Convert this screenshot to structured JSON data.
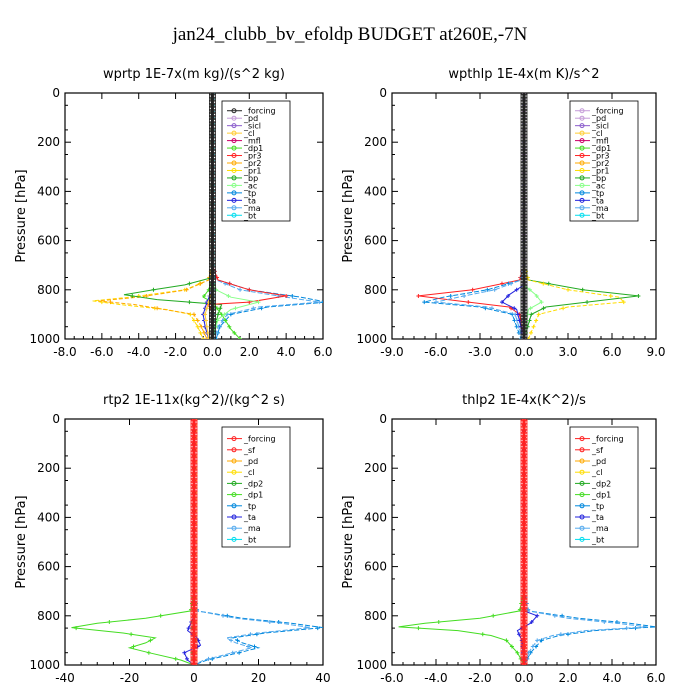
{
  "figure": {
    "title": "jan24_clubb_bv_efoldp  BUDGET at260E,-7N"
  },
  "colors": {
    "forcing": "#222222",
    "pd": "#c49bd8",
    "sicl": "#8a5ccc",
    "cl": "#ffcc33",
    "mfl": "#cc0066",
    "dp1": "#44dd22",
    "dp2": "#22aa22",
    "pr3": "#ff2222",
    "pr2": "#ffaa00",
    "pr1": "#ffdd00",
    "bp": "#22aa22",
    "ac": "#88ff88",
    "tp": "#0088dd",
    "ta": "#2222dd",
    "ma": "#55aaee",
    "bt": "#00ddee",
    "sf": "#ff2222",
    "forcing_red": "#ff2222"
  },
  "chart_data": [
    {
      "type": "line",
      "title": "wprtp   1E-7x(m kg)/(s^2 kg)",
      "ylabel": "Pressure [hPa]",
      "xlim": [
        -8,
        6
      ],
      "ylim": [
        1000,
        0
      ],
      "xticks": [
        "-8.0",
        "-6.0",
        "-4.0",
        "-2.0",
        "0.0",
        "2.0",
        "4.0",
        "6.0"
      ],
      "xtick_values": [
        -8,
        -6,
        -4,
        -2,
        0,
        2,
        4,
        6
      ],
      "yticks": [
        "0",
        "200",
        "400",
        "600",
        "800",
        "1000"
      ],
      "ytick_values": [
        0,
        200,
        400,
        600,
        800,
        1000
      ],
      "legend": [
        "_forcing",
        "_pd",
        "_sicl",
        "_cl",
        "_mfl",
        "_dp1",
        "_pr3",
        "_pr2",
        "_pr1",
        "_bp",
        "_ac",
        "_tp",
        "_ta",
        "_ma",
        "_bt"
      ],
      "legend_colors": [
        "forcing",
        "pd",
        "sicl",
        "cl",
        "mfl",
        "dp1",
        "pr3",
        "pr2",
        "pr1",
        "bp",
        "ac",
        "tp",
        "ta",
        "ma",
        "bt"
      ],
      "series": [
        {
          "name": "_tp",
          "color": "tp",
          "p": [
            0,
            700,
            760,
            800,
            830,
            850,
            870,
            900,
            950,
            1000
          ],
          "v": [
            0,
            0,
            0.3,
            2.0,
            4.8,
            6.2,
            3.0,
            1.0,
            0.4,
            0.2
          ]
        },
        {
          "name": "_ma",
          "color": "ma",
          "p": [
            0,
            700,
            760,
            800,
            830,
            850,
            870,
            900,
            950,
            1000
          ],
          "v": [
            0,
            0,
            0.2,
            1.5,
            4.0,
            5.8,
            2.5,
            0.8,
            0.3,
            0.1
          ]
        },
        {
          "name": "_pr1",
          "color": "pr1",
          "p": [
            0,
            700,
            760,
            800,
            830,
            845,
            860,
            880,
            900,
            950,
            1000
          ],
          "v": [
            0,
            0,
            -0.2,
            -1.5,
            -4.5,
            -6.5,
            -5.0,
            -2.5,
            -1.2,
            -0.8,
            -0.5
          ]
        },
        {
          "name": "_pr2",
          "color": "pr2",
          "p": [
            0,
            700,
            760,
            800,
            830,
            845,
            860,
            900,
            950,
            1000
          ],
          "v": [
            0,
            0,
            -0.2,
            -1.4,
            -4.0,
            -6.2,
            -4.2,
            -1.0,
            -0.6,
            -0.3
          ]
        },
        {
          "name": "_bp",
          "color": "bp",
          "p": [
            0,
            700,
            750,
            780,
            800,
            820,
            840,
            860,
            900,
            1000
          ],
          "v": [
            0,
            0,
            0,
            -1.5,
            -3.2,
            -4.8,
            -3.0,
            0.5,
            0.3,
            0
          ]
        },
        {
          "name": "_dp1",
          "color": "dp1",
          "p": [
            0,
            700,
            760,
            800,
            830,
            850,
            900,
            960,
            1000
          ],
          "v": [
            0,
            0,
            0,
            -0.2,
            -0.5,
            0,
            0.5,
            1.0,
            1.5
          ]
        },
        {
          "name": "_pr3",
          "color": "pr3",
          "p": [
            0,
            700,
            760,
            800,
            825,
            850,
            860,
            880,
            1000
          ],
          "v": [
            0,
            0,
            0.3,
            2.0,
            4.0,
            2.0,
            -0.3,
            0,
            0
          ]
        },
        {
          "name": "_ac",
          "color": "ac",
          "p": [
            0,
            700,
            760,
            800,
            830,
            850,
            880,
            920,
            1000
          ],
          "v": [
            0,
            0,
            0,
            0.2,
            1.0,
            2.5,
            1.0,
            0.3,
            0
          ]
        },
        {
          "name": "_ta",
          "color": "ta",
          "p": [
            0,
            800,
            850,
            900,
            950,
            1000
          ],
          "v": [
            0,
            0,
            -0.3,
            -0.5,
            -0.4,
            -0.2
          ]
        },
        {
          "name": "_cl",
          "color": "cl",
          "p": [
            0,
            800,
            850,
            900,
            950,
            1000
          ],
          "v": [
            0,
            0,
            -0.2,
            -0.4,
            -0.3,
            -0.2
          ]
        },
        {
          "name": "_bt",
          "color": "bt",
          "p": [
            0,
            1000
          ],
          "v": [
            0.02,
            0.02
          ]
        },
        {
          "name": "_forcing",
          "color": "forcing",
          "p": [
            0,
            1000
          ],
          "v": [
            0,
            0
          ]
        }
      ]
    },
    {
      "type": "line",
      "title": "wpthlp   1E-4x(m K)/s^2",
      "ylabel": "Pressure [hPa]",
      "xlim": [
        -9,
        9
      ],
      "ylim": [
        1000,
        0
      ],
      "xticks": [
        "-9.0",
        "-6.0",
        "-3.0",
        "0.0",
        "3.0",
        "6.0",
        "9.0"
      ],
      "xtick_values": [
        -9,
        -6,
        -3,
        0,
        3,
        6,
        9
      ],
      "yticks": [
        "0",
        "200",
        "400",
        "600",
        "800",
        "1000"
      ],
      "ytick_values": [
        0,
        200,
        400,
        600,
        800,
        1000
      ],
      "legend": [
        "_forcing",
        "_pd",
        "_sicl",
        "_cl",
        "_mfl",
        "_dp1",
        "_pr3",
        "_pr2",
        "_pr1",
        "_bp",
        "_ac",
        "_tp",
        "_ta",
        "_ma",
        "_bt"
      ],
      "legend_colors": [
        "pd",
        "pd",
        "sicl",
        "cl",
        "mfl",
        "dp1",
        "pr3",
        "pr2",
        "pr1",
        "bp",
        "ac",
        "tp",
        "ta",
        "ma",
        "bt"
      ],
      "series": [
        {
          "name": "_bp",
          "color": "bp",
          "p": [
            0,
            700,
            760,
            800,
            825,
            845,
            870,
            900,
            1000
          ],
          "v": [
            0,
            0,
            0.3,
            4.0,
            7.8,
            5.0,
            1.5,
            0.5,
            0
          ]
        },
        {
          "name": "_pr1",
          "color": "pr1",
          "p": [
            0,
            700,
            760,
            800,
            830,
            850,
            870,
            900,
            1000
          ],
          "v": [
            0,
            0,
            0.3,
            3.0,
            6.5,
            6.8,
            3.0,
            1.0,
            0.3
          ]
        },
        {
          "name": "_pr3",
          "color": "pr3",
          "p": [
            0,
            700,
            760,
            800,
            825,
            845,
            870,
            900,
            1000
          ],
          "v": [
            0,
            0,
            -0.3,
            -3.5,
            -7.2,
            -4.5,
            -1.0,
            -0.3,
            0
          ]
        },
        {
          "name": "_tp",
          "color": "tp",
          "p": [
            0,
            700,
            760,
            800,
            830,
            850,
            870,
            900,
            1000
          ],
          "v": [
            0,
            0,
            -0.2,
            -2.5,
            -5.5,
            -6.8,
            -3.0,
            -0.8,
            -0.2
          ]
        },
        {
          "name": "_ma",
          "color": "ma",
          "p": [
            0,
            700,
            760,
            800,
            830,
            850,
            870,
            900,
            1000
          ],
          "v": [
            0,
            0,
            -0.2,
            -2.0,
            -4.5,
            -6.0,
            -2.5,
            -0.6,
            -0.1
          ]
        },
        {
          "name": "_ta",
          "color": "ta",
          "p": [
            0,
            780,
            820,
            850,
            880,
            1000
          ],
          "v": [
            0,
            0,
            -1.0,
            -1.5,
            -0.5,
            0
          ]
        },
        {
          "name": "_ac",
          "color": "ac",
          "p": [
            0,
            780,
            820,
            850,
            880,
            1000
          ],
          "v": [
            0,
            0,
            0.8,
            1.2,
            0.3,
            0
          ]
        },
        {
          "name": "_pd",
          "color": "pd",
          "p": [
            0,
            1000
          ],
          "v": [
            0,
            0
          ]
        }
      ]
    },
    {
      "type": "line",
      "title": "rtp2   1E-11x(kg^2)/(kg^2 s)",
      "ylabel": "Pressure [hPa]",
      "xlim": [
        -40,
        40
      ],
      "ylim": [
        1000,
        0
      ],
      "xticks": [
        "-40",
        "-20",
        "0",
        "20",
        "40"
      ],
      "xtick_values": [
        -40,
        -20,
        0,
        20,
        40
      ],
      "yticks": [
        "0",
        "200",
        "400",
        "600",
        "800",
        "1000"
      ],
      "ytick_values": [
        0,
        200,
        400,
        600,
        800,
        1000
      ],
      "legend": [
        "_forcing",
        "_sf",
        "_pd",
        "_cl",
        "_dp2",
        "_dp1",
        "_tp",
        "_ta",
        "_ma",
        "_bt"
      ],
      "legend_colors": [
        "forcing_red",
        "sf",
        "pr2",
        "pr1",
        "dp2",
        "dp1",
        "tp",
        "ta",
        "ma",
        "bt"
      ],
      "series": [
        {
          "name": "_dp1",
          "color": "dp1",
          "p": [
            0,
            700,
            780,
            810,
            830,
            848,
            870,
            890,
            910,
            930,
            950,
            980,
            1000
          ],
          "v": [
            0,
            0,
            -1,
            -15,
            -30,
            -38,
            -22,
            -12,
            -15,
            -20,
            -14,
            -4,
            0
          ]
        },
        {
          "name": "_tp",
          "color": "tp",
          "p": [
            0,
            700,
            780,
            810,
            830,
            848,
            870,
            890,
            910,
            930,
            950,
            980,
            1000
          ],
          "v": [
            0,
            0,
            1,
            15,
            30,
            40,
            22,
            12,
            15,
            20,
            14,
            4,
            0
          ]
        },
        {
          "name": "_ma",
          "color": "ma",
          "p": [
            0,
            700,
            780,
            810,
            830,
            848,
            870,
            890,
            910,
            930,
            950,
            980,
            1000
          ],
          "v": [
            0,
            0,
            1,
            13,
            27,
            36,
            20,
            10,
            13,
            18,
            12,
            3,
            0
          ]
        },
        {
          "name": "_ta",
          "color": "ta",
          "p": [
            0,
            800,
            830,
            860,
            890,
            920,
            950,
            980,
            1000
          ],
          "v": [
            0,
            0,
            -1,
            -2,
            1,
            2,
            -3,
            -2,
            0
          ]
        },
        {
          "name": "_dp2",
          "color": "dp2",
          "p": [
            0,
            800,
            850,
            900,
            950,
            1000
          ],
          "v": [
            0,
            0,
            -0.5,
            0.5,
            -0.5,
            0
          ]
        },
        {
          "name": "_pd",
          "color": "pr2",
          "p": [
            0,
            1000
          ],
          "v": [
            0.3,
            0.3
          ]
        },
        {
          "name": "_forcing",
          "color": "forcing_red",
          "p": [
            0,
            1000
          ],
          "v": [
            0,
            0
          ]
        }
      ]
    },
    {
      "type": "line",
      "title": "thlp2   1E-4x(K^2)/s",
      "ylabel": "Pressure [hPa]",
      "xlim": [
        -6,
        6
      ],
      "ylim": [
        1000,
        0
      ],
      "xticks": [
        "-6.0",
        "-4.0",
        "-2.0",
        "0.0",
        "2.0",
        "4.0",
        "6.0"
      ],
      "xtick_values": [
        -6,
        -4,
        -2,
        0,
        2,
        4,
        6
      ],
      "yticks": [
        "0",
        "200",
        "400",
        "600",
        "800",
        "1000"
      ],
      "ytick_values": [
        0,
        200,
        400,
        600,
        800,
        1000
      ],
      "legend": [
        "_forcing",
        "_sf",
        "_pd",
        "_cl",
        "_dp2",
        "_dp1",
        "_tp",
        "_ta",
        "_ma",
        "_bt"
      ],
      "legend_colors": [
        "forcing_red",
        "sf",
        "pr2",
        "pr1",
        "dp2",
        "dp1",
        "tp",
        "ta",
        "ma",
        "bt"
      ],
      "series": [
        {
          "name": "_dp1",
          "color": "dp1",
          "p": [
            0,
            700,
            780,
            810,
            830,
            845,
            860,
            880,
            900,
            950,
            1000
          ],
          "v": [
            0,
            0,
            -0.2,
            -2.0,
            -4.5,
            -5.7,
            -3.0,
            -1.5,
            -0.8,
            -0.3,
            0
          ]
        },
        {
          "name": "_tp",
          "color": "tp",
          "p": [
            0,
            700,
            780,
            810,
            830,
            845,
            860,
            880,
            900,
            950,
            1000
          ],
          "v": [
            0,
            0,
            0.2,
            2.5,
            4.8,
            6.0,
            3.2,
            1.6,
            0.8,
            0.3,
            0
          ]
        },
        {
          "name": "_ma",
          "color": "ma",
          "p": [
            0,
            700,
            780,
            810,
            830,
            845,
            860,
            880,
            900,
            950,
            1000
          ],
          "v": [
            0,
            0,
            0.2,
            2.0,
            4.2,
            5.6,
            2.8,
            1.3,
            0.6,
            0.2,
            0
          ]
        },
        {
          "name": "_ta",
          "color": "ta",
          "p": [
            0,
            780,
            800,
            830,
            860,
            900,
            1000
          ],
          "v": [
            0,
            0,
            0.6,
            0.3,
            -0.3,
            -0.1,
            0
          ]
        },
        {
          "name": "_forcing",
          "color": "forcing_red",
          "p": [
            0,
            1000
          ],
          "v": [
            0,
            0
          ]
        }
      ]
    }
  ]
}
